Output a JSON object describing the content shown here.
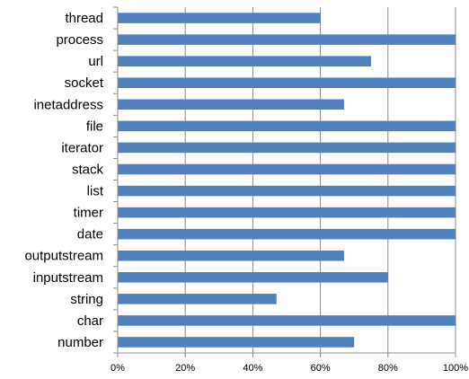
{
  "chart_data": {
    "type": "bar",
    "orientation": "horizontal",
    "categories": [
      "thread",
      "process",
      "url",
      "socket",
      "inetaddress",
      "file",
      "iterator",
      "stack",
      "list",
      "timer",
      "date",
      "outputstream",
      "inputstream",
      "string",
      "char",
      "number"
    ],
    "values": [
      60,
      100,
      75,
      100,
      67,
      100,
      100,
      100,
      100,
      100,
      100,
      67,
      80,
      47,
      100,
      70
    ],
    "x_ticks": [
      "0%",
      "20%",
      "40%",
      "60%",
      "80%",
      "100%"
    ],
    "xlim": [
      0,
      100
    ],
    "grid": true,
    "legend": "none",
    "colors": {
      "bar": "#4f81bd",
      "grid": "#8c8c8c",
      "axis": "#8c8c8c",
      "text": "#000000"
    }
  }
}
